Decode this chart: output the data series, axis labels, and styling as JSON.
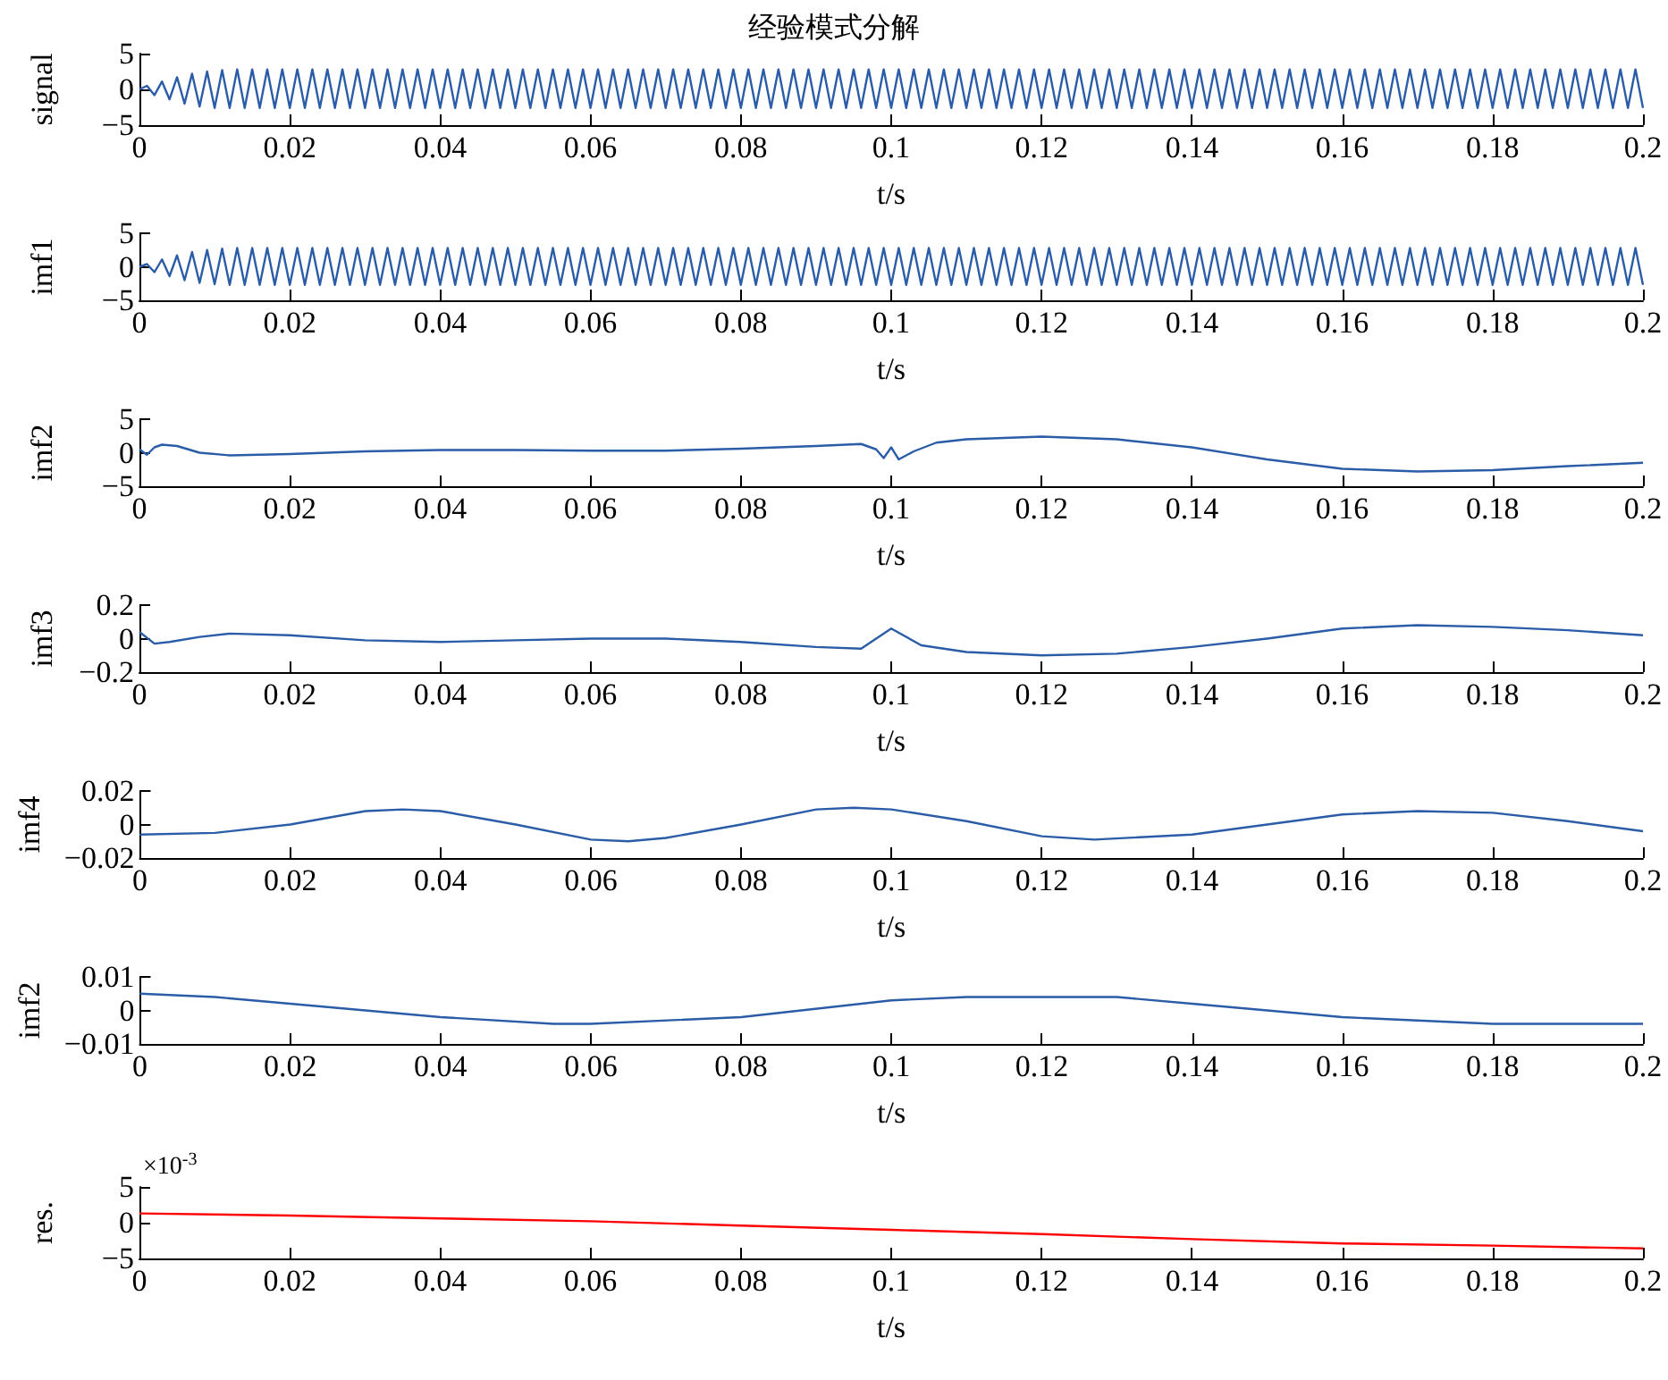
{
  "chart_data": [
    {
      "type": "line",
      "title": "经验模式分解",
      "ylabel": "signal",
      "xlabel": "t/s",
      "marker": "none",
      "xlim": [
        0,
        0.2
      ],
      "xticks": [
        0,
        0.02,
        0.04,
        0.06,
        0.08,
        0.1,
        0.12,
        0.14,
        0.16,
        0.18,
        0.2
      ],
      "ylim": [
        -5,
        5
      ],
      "yticks": [
        -5,
        0,
        5
      ],
      "x": [
        0,
        0.001,
        0.002,
        0.003,
        0.004,
        0.005,
        0.006,
        0.007,
        0.008,
        0.009,
        0.01,
        0.011,
        0.012,
        0.013,
        0.014,
        0.015,
        0.016,
        0.017,
        0.018,
        0.019,
        0.02,
        0.021,
        0.022,
        0.023,
        0.024,
        0.025,
        0.026,
        0.027,
        0.028,
        0.029,
        0.03,
        0.031,
        0.032,
        0.033,
        0.034,
        0.035,
        0.036,
        0.037,
        0.038,
        0.039,
        0.04,
        0.041,
        0.042,
        0.043,
        0.044,
        0.045,
        0.046,
        0.047,
        0.048,
        0.049,
        0.05,
        0.051,
        0.052,
        0.053,
        0.054,
        0.055,
        0.056,
        0.057,
        0.058,
        0.059,
        0.06,
        0.061,
        0.062,
        0.063,
        0.064,
        0.065,
        0.066,
        0.067,
        0.068,
        0.069,
        0.07,
        0.071,
        0.072,
        0.073,
        0.074,
        0.075,
        0.076,
        0.077,
        0.078,
        0.079,
        0.08,
        0.081,
        0.082,
        0.083,
        0.084,
        0.085,
        0.086,
        0.087,
        0.088,
        0.089,
        0.09,
        0.091,
        0.092,
        0.093,
        0.094,
        0.095,
        0.096,
        0.097,
        0.098,
        0.099,
        0.1,
        0.101,
        0.102,
        0.103,
        0.104,
        0.105,
        0.106,
        0.107,
        0.108,
        0.109,
        0.11,
        0.111,
        0.112,
        0.113,
        0.114,
        0.115,
        0.116,
        0.117,
        0.118,
        0.119,
        0.12,
        0.121,
        0.122,
        0.123,
        0.124,
        0.125,
        0.126,
        0.127,
        0.128,
        0.129,
        0.13,
        0.131,
        0.132,
        0.133,
        0.134,
        0.135,
        0.136,
        0.137,
        0.138,
        0.139,
        0.14,
        0.141,
        0.142,
        0.143,
        0.144,
        0.145,
        0.146,
        0.147,
        0.148,
        0.149,
        0.15,
        0.151,
        0.152,
        0.153,
        0.154,
        0.155,
        0.156,
        0.157,
        0.158,
        0.159,
        0.16,
        0.161,
        0.162,
        0.163,
        0.164,
        0.165,
        0.166,
        0.167,
        0.168,
        0.169,
        0.17,
        0.171,
        0.172,
        0.173,
        0.174,
        0.175,
        0.176,
        0.177,
        0.178,
        0.179,
        0.18,
        0.181,
        0.182,
        0.183,
        0.184,
        0.185,
        0.186,
        0.187,
        0.188,
        0.189,
        0.19,
        0.191,
        0.192,
        0.193,
        0.194,
        0.195,
        0.196,
        0.197,
        0.198,
        0.199,
        0.2
      ],
      "series": [
        {
          "color": "#2b5ca8",
          "values": [
            0,
            0.5,
            -0.8,
            1.1,
            -1.4,
            1.7,
            -2.0,
            2.2,
            -2.4,
            2.5,
            -2.6,
            2.7,
            -2.6,
            2.8,
            -2.6,
            2.8,
            -2.6,
            2.8,
            -2.6,
            2.8,
            -2.6,
            2.8,
            -2.6,
            2.8,
            -2.6,
            2.8,
            -2.6,
            2.8,
            -2.6,
            2.8,
            -2.6,
            2.8,
            -2.6,
            2.8,
            -2.6,
            2.8,
            -2.6,
            2.8,
            -2.6,
            2.8,
            -2.6,
            2.8,
            -2.6,
            2.8,
            -2.6,
            2.8,
            -2.6,
            2.8,
            -2.6,
            2.8,
            -2.6,
            2.8,
            -2.6,
            2.8,
            -2.6,
            2.8,
            -2.6,
            2.8,
            -2.6,
            2.8,
            -2.6,
            2.8,
            -2.6,
            2.8,
            -2.6,
            2.8,
            -2.6,
            2.8,
            -2.6,
            2.8,
            -2.6,
            2.8,
            -2.6,
            2.8,
            -2.6,
            2.8,
            -2.6,
            2.8,
            -2.6,
            2.8,
            -2.6,
            2.8,
            -2.6,
            2.8,
            -2.6,
            2.8,
            -2.6,
            2.8,
            -2.6,
            2.8,
            -2.6,
            2.8,
            -2.6,
            2.8,
            -2.6,
            2.8,
            -2.6,
            2.8,
            -2.6,
            2.8,
            -2.6,
            2.8,
            -2.6,
            2.8,
            -2.6,
            2.8,
            -2.6,
            2.8,
            -2.6,
            2.8,
            -2.6,
            2.8,
            -2.6,
            2.8,
            -2.6,
            2.8,
            -2.6,
            2.8,
            -2.6,
            2.8,
            -2.6,
            2.8,
            -2.6,
            2.8,
            -2.6,
            2.8,
            -2.6,
            2.8,
            -2.6,
            2.8,
            -2.6,
            2.8,
            -2.6,
            2.8,
            -2.6,
            2.8,
            -2.6,
            2.8,
            -2.6,
            2.8,
            -2.6,
            2.8,
            -2.6,
            2.8,
            -2.6,
            2.8,
            -2.6,
            2.8,
            -2.6,
            2.8,
            -2.6,
            2.8,
            -2.6,
            2.8,
            -2.6,
            2.8,
            -2.6,
            2.8,
            -2.6,
            2.8,
            -2.6,
            2.8,
            -2.6,
            2.8,
            -2.6,
            2.8,
            -2.6,
            2.8,
            -2.6,
            2.8,
            -2.6,
            2.8,
            -2.6,
            2.8,
            -2.6,
            2.8,
            -2.6,
            2.8,
            -2.6,
            2.8,
            -2.6,
            2.8,
            -2.6,
            2.8,
            -2.6,
            2.8,
            -2.6,
            2.8,
            -2.6,
            2.8,
            -2.6,
            2.8,
            -2.6,
            2.8,
            -2.6,
            2.8,
            -2.6,
            2.8,
            -2.6,
            2.8,
            -2.6
          ]
        }
      ]
    },
    {
      "type": "line",
      "ylabel": "imf1",
      "xlabel": "t/s",
      "marker": "none",
      "xlim": [
        0,
        0.2
      ],
      "xticks": [
        0,
        0.02,
        0.04,
        0.06,
        0.08,
        0.1,
        0.12,
        0.14,
        0.16,
        0.18,
        0.2
      ],
      "ylim": [
        -5,
        5
      ],
      "yticks": [
        -5,
        0,
        5
      ],
      "x": [
        0,
        0.001,
        0.002,
        0.003,
        0.004,
        0.005,
        0.006,
        0.007,
        0.008,
        0.009,
        0.01,
        0.011,
        0.012,
        0.013,
        0.014,
        0.015,
        0.016,
        0.017,
        0.018,
        0.019,
        0.02,
        0.021,
        0.022,
        0.023,
        0.024,
        0.025,
        0.026,
        0.027,
        0.028,
        0.029,
        0.03,
        0.031,
        0.032,
        0.033,
        0.034,
        0.035,
        0.036,
        0.037,
        0.038,
        0.039,
        0.04,
        0.041,
        0.042,
        0.043,
        0.044,
        0.045,
        0.046,
        0.047,
        0.048,
        0.049,
        0.05,
        0.051,
        0.052,
        0.053,
        0.054,
        0.055,
        0.056,
        0.057,
        0.058,
        0.059,
        0.06,
        0.061,
        0.062,
        0.063,
        0.064,
        0.065,
        0.066,
        0.067,
        0.068,
        0.069,
        0.07,
        0.071,
        0.072,
        0.073,
        0.074,
        0.075,
        0.076,
        0.077,
        0.078,
        0.079,
        0.08,
        0.081,
        0.082,
        0.083,
        0.084,
        0.085,
        0.086,
        0.087,
        0.088,
        0.089,
        0.09,
        0.091,
        0.092,
        0.093,
        0.094,
        0.095,
        0.096,
        0.097,
        0.098,
        0.099,
        0.1,
        0.101,
        0.102,
        0.103,
        0.104,
        0.105,
        0.106,
        0.107,
        0.108,
        0.109,
        0.11,
        0.111,
        0.112,
        0.113,
        0.114,
        0.115,
        0.116,
        0.117,
        0.118,
        0.119,
        0.12,
        0.121,
        0.122,
        0.123,
        0.124,
        0.125,
        0.126,
        0.127,
        0.128,
        0.129,
        0.13,
        0.131,
        0.132,
        0.133,
        0.134,
        0.135,
        0.136,
        0.137,
        0.138,
        0.139,
        0.14,
        0.141,
        0.142,
        0.143,
        0.144,
        0.145,
        0.146,
        0.147,
        0.148,
        0.149,
        0.15,
        0.151,
        0.152,
        0.153,
        0.154,
        0.155,
        0.156,
        0.157,
        0.158,
        0.159,
        0.16,
        0.161,
        0.162,
        0.163,
        0.164,
        0.165,
        0.166,
        0.167,
        0.168,
        0.169,
        0.17,
        0.171,
        0.172,
        0.173,
        0.174,
        0.175,
        0.176,
        0.177,
        0.178,
        0.179,
        0.18,
        0.181,
        0.182,
        0.183,
        0.184,
        0.185,
        0.186,
        0.187,
        0.188,
        0.189,
        0.19,
        0.191,
        0.192,
        0.193,
        0.194,
        0.195,
        0.196,
        0.197,
        0.198,
        0.199,
        0.2
      ],
      "series": [
        {
          "color": "#2b5ca8",
          "values": [
            0,
            0.4,
            -0.8,
            1.1,
            -1.4,
            1.7,
            -2.0,
            2.2,
            -2.4,
            2.5,
            -2.6,
            2.7,
            -2.7,
            2.8,
            -2.7,
            2.8,
            -2.7,
            2.8,
            -2.7,
            2.8,
            -2.7,
            2.8,
            -2.7,
            2.8,
            -2.7,
            2.8,
            -2.7,
            2.8,
            -2.7,
            2.8,
            -2.7,
            2.8,
            -2.7,
            2.8,
            -2.7,
            2.8,
            -2.7,
            2.8,
            -2.7,
            2.8,
            -2.7,
            2.8,
            -2.7,
            2.8,
            -2.7,
            2.8,
            -2.7,
            2.8,
            -2.7,
            2.8,
            -2.7,
            2.8,
            -2.7,
            2.8,
            -2.7,
            2.8,
            -2.7,
            2.8,
            -2.7,
            2.8,
            -2.7,
            2.8,
            -2.7,
            2.8,
            -2.7,
            2.8,
            -2.7,
            2.8,
            -2.7,
            2.8,
            -2.7,
            2.8,
            -2.7,
            2.8,
            -2.7,
            2.8,
            -2.7,
            2.8,
            -2.7,
            2.8,
            -2.7,
            2.8,
            -2.7,
            2.8,
            -2.7,
            2.8,
            -2.7,
            2.8,
            -2.7,
            2.8,
            -2.7,
            2.8,
            -2.7,
            2.8,
            -2.7,
            2.8,
            -2.7,
            2.8,
            -2.7,
            2.8,
            -2.7,
            2.8,
            -2.7,
            2.8,
            -2.7,
            2.8,
            -2.7,
            2.8,
            -2.7,
            2.8,
            -2.7,
            2.8,
            -2.7,
            2.8,
            -2.7,
            2.8,
            -2.7,
            2.8,
            -2.7,
            2.8,
            -2.7,
            2.8,
            -2.7,
            2.8,
            -2.7,
            2.8,
            -2.7,
            2.8,
            -2.7,
            2.8,
            -2.7,
            2.8,
            -2.7,
            2.8,
            -2.7,
            2.8,
            -2.7,
            2.8,
            -2.7,
            2.8,
            -2.7,
            2.8,
            -2.7,
            2.8,
            -2.7,
            2.8,
            -2.7,
            2.8,
            -2.7,
            2.8,
            -2.7,
            2.8,
            -2.7,
            2.8,
            -2.7,
            2.8,
            -2.7,
            2.8,
            -2.7,
            2.8,
            -2.7,
            2.8,
            -2.7,
            2.8,
            -2.7,
            2.8,
            -2.7,
            2.8,
            -2.7,
            2.8,
            -2.7,
            2.8,
            -2.7,
            2.8,
            -2.7,
            2.8,
            -2.7,
            2.8,
            -2.7,
            2.8,
            -2.7,
            2.8,
            -2.7,
            2.8,
            -2.7,
            2.8,
            -2.7,
            2.8,
            -2.7,
            2.8,
            -2.7,
            2.8,
            -2.7,
            2.8,
            -2.7,
            2.8,
            -2.7,
            2.8,
            -2.7,
            2.8,
            -2.7
          ]
        }
      ]
    },
    {
      "type": "line",
      "ylabel": "imf2",
      "xlabel": "t/s",
      "marker": "none",
      "xlim": [
        0,
        0.2
      ],
      "xticks": [
        0,
        0.02,
        0.04,
        0.06,
        0.08,
        0.1,
        0.12,
        0.14,
        0.16,
        0.18,
        0.2
      ],
      "ylim": [
        -5,
        5
      ],
      "yticks": [
        -5,
        0,
        5
      ],
      "x": [
        0,
        0.001,
        0.002,
        0.003,
        0.005,
        0.008,
        0.012,
        0.02,
        0.03,
        0.04,
        0.05,
        0.06,
        0.07,
        0.08,
        0.09,
        0.096,
        0.098,
        0.099,
        0.1,
        0.101,
        0.103,
        0.106,
        0.11,
        0.12,
        0.13,
        0.14,
        0.15,
        0.16,
        0.17,
        0.18,
        0.19,
        0.2
      ],
      "series": [
        {
          "color": "#2b5ca8",
          "values": [
            0.5,
            -0.3,
            0.8,
            1.2,
            1.0,
            0.0,
            -0.4,
            -0.2,
            0.2,
            0.4,
            0.4,
            0.3,
            0.3,
            0.6,
            1.0,
            1.3,
            0.5,
            -0.8,
            0.8,
            -1.0,
            0.2,
            1.5,
            2.0,
            2.4,
            2.0,
            0.8,
            -1.0,
            -2.4,
            -2.8,
            -2.6,
            -2.0,
            -1.5
          ]
        }
      ]
    },
    {
      "type": "line",
      "ylabel": "imf3",
      "xlabel": "t/s",
      "marker": "none",
      "xlim": [
        0,
        0.2
      ],
      "xticks": [
        0,
        0.02,
        0.04,
        0.06,
        0.08,
        0.1,
        0.12,
        0.14,
        0.16,
        0.18,
        0.2
      ],
      "ylim": [
        -0.2,
        0.2
      ],
      "yticks": [
        -0.2,
        0,
        0.2
      ],
      "x": [
        0,
        0.002,
        0.004,
        0.008,
        0.012,
        0.02,
        0.03,
        0.04,
        0.05,
        0.06,
        0.07,
        0.08,
        0.09,
        0.096,
        0.1,
        0.104,
        0.11,
        0.12,
        0.13,
        0.14,
        0.15,
        0.16,
        0.17,
        0.18,
        0.19,
        0.2
      ],
      "series": [
        {
          "color": "#2b5ca8",
          "values": [
            0.04,
            -0.03,
            -0.02,
            0.01,
            0.03,
            0.02,
            -0.01,
            -0.02,
            -0.01,
            0.0,
            0.0,
            -0.02,
            -0.05,
            -0.06,
            0.06,
            -0.04,
            -0.08,
            -0.1,
            -0.09,
            -0.05,
            0.0,
            0.06,
            0.08,
            0.07,
            0.05,
            0.02
          ]
        }
      ]
    },
    {
      "type": "line",
      "ylabel": "imf4",
      "xlabel": "t/s",
      "marker": "none",
      "xlim": [
        0,
        0.2
      ],
      "xticks": [
        0,
        0.02,
        0.04,
        0.06,
        0.08,
        0.1,
        0.12,
        0.14,
        0.16,
        0.18,
        0.2
      ],
      "ylim": [
        -0.02,
        0.02
      ],
      "yticks": [
        -0.02,
        0,
        0.02
      ],
      "x": [
        0,
        0.01,
        0.02,
        0.03,
        0.035,
        0.04,
        0.05,
        0.06,
        0.065,
        0.07,
        0.08,
        0.09,
        0.095,
        0.1,
        0.11,
        0.12,
        0.127,
        0.14,
        0.15,
        0.16,
        0.17,
        0.18,
        0.19,
        0.2
      ],
      "series": [
        {
          "color": "#2b5ca8",
          "values": [
            -0.006,
            -0.005,
            0.0,
            0.008,
            0.009,
            0.008,
            0.0,
            -0.009,
            -0.01,
            -0.008,
            0.0,
            0.009,
            0.01,
            0.009,
            0.002,
            -0.007,
            -0.009,
            -0.006,
            0.0,
            0.006,
            0.008,
            0.007,
            0.002,
            -0.004
          ]
        }
      ]
    },
    {
      "type": "line",
      "ylabel": "imf2",
      "xlabel": "t/s",
      "marker": "none",
      "xlim": [
        0,
        0.2
      ],
      "xticks": [
        0,
        0.02,
        0.04,
        0.06,
        0.08,
        0.1,
        0.12,
        0.14,
        0.16,
        0.18,
        0.2
      ],
      "ylim": [
        -0.01,
        0.01
      ],
      "yticks": [
        -0.01,
        0,
        0.01
      ],
      "x": [
        0,
        0.01,
        0.02,
        0.04,
        0.055,
        0.06,
        0.08,
        0.1,
        0.11,
        0.12,
        0.13,
        0.14,
        0.16,
        0.18,
        0.2
      ],
      "series": [
        {
          "color": "#2b5ca8",
          "values": [
            0.005,
            0.004,
            0.002,
            -0.002,
            -0.004,
            -0.004,
            -0.002,
            0.003,
            0.004,
            0.004,
            0.004,
            0.002,
            -0.002,
            -0.004,
            -0.004
          ]
        }
      ]
    },
    {
      "type": "line",
      "ylabel": "res.",
      "xlabel": "t/s",
      "marker": "none",
      "annotations": [
        "×10$^{-3}$"
      ],
      "xlim": [
        0,
        0.2
      ],
      "xticks": [
        0,
        0.02,
        0.04,
        0.06,
        0.08,
        0.1,
        0.12,
        0.14,
        0.16,
        0.18,
        0.2
      ],
      "ylim": [
        -5,
        5
      ],
      "yticks": [
        -5,
        0,
        5
      ],
      "x": [
        0,
        0.02,
        0.04,
        0.06,
        0.08,
        0.1,
        0.12,
        0.14,
        0.16,
        0.18,
        0.2
      ],
      "series": [
        {
          "color": "#ff0000",
          "values": [
            1.3,
            1.0,
            0.6,
            0.2,
            -0.4,
            -1.0,
            -1.6,
            -2.3,
            -2.9,
            -3.2,
            -3.6
          ]
        }
      ]
    }
  ]
}
